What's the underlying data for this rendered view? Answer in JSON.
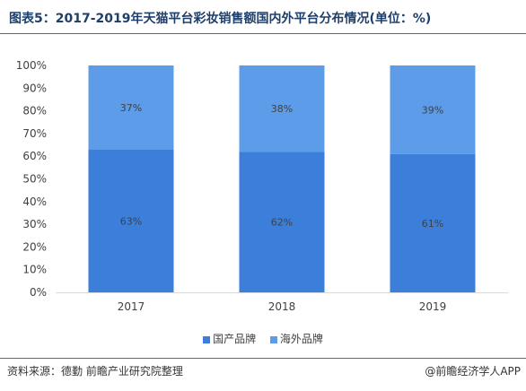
{
  "title": "图表5：2017-2019年天猫平台彩妆销售额国内外平台分布情况(单位：%)",
  "footer": {
    "source": "资料来源：德勤 前瞻产业研究院整理",
    "brand": "@前瞻经济学人APP"
  },
  "colors": {
    "domestic": "#3c7fdb",
    "foreign": "#5c9ce8",
    "axis": "#d9d9d9",
    "title": "#1f3f6b",
    "rule": "#2f75b5"
  },
  "chart_data": {
    "type": "bar",
    "stacked": true,
    "categories": [
      "2017",
      "2018",
      "2019"
    ],
    "series": [
      {
        "name": "国产品牌",
        "values": [
          63,
          62,
          61
        ],
        "labels": [
          "63%",
          "62%",
          "61%"
        ]
      },
      {
        "name": "海外品牌",
        "values": [
          37,
          38,
          39
        ],
        "labels": [
          "37%",
          "38%",
          "39%"
        ]
      }
    ],
    "ylim": [
      0,
      100
    ],
    "yticks": [
      "0%",
      "10%",
      "20%",
      "30%",
      "40%",
      "50%",
      "60%",
      "70%",
      "80%",
      "90%",
      "100%"
    ],
    "grid": false,
    "legend": "bottom"
  }
}
